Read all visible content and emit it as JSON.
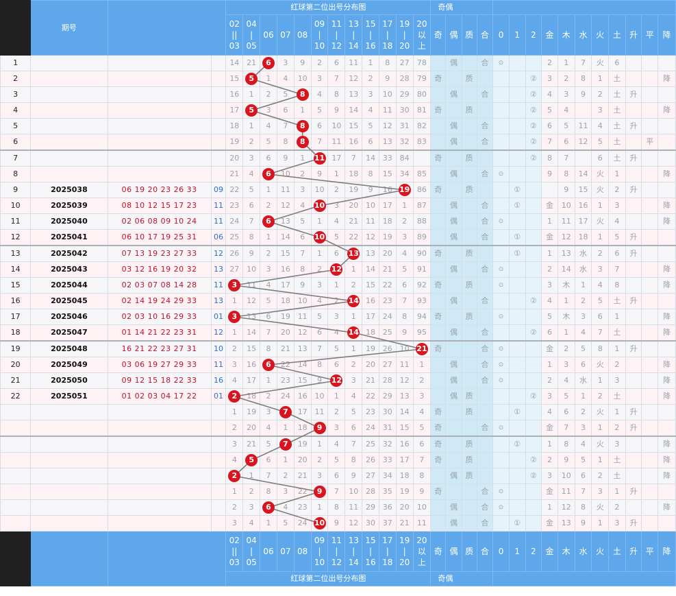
{
  "header": {
    "issue_label": "期号",
    "section_title": "红球第二位出号分布图",
    "parity_title": "奇偶",
    "columns": [
      "02\n||\n03",
      "04\n|\n05",
      "06",
      "07",
      "08",
      "09\n|\n10",
      "11\n|\n12",
      "13\n|\n14",
      "15\n|\n16",
      "17\n|\n18",
      "19\n|\n20",
      "20\n以\n上",
      "奇",
      "偶",
      "质",
      "合",
      "0",
      "1",
      "2",
      "金",
      "木",
      "水",
      "火",
      "土",
      "升",
      "平",
      "降"
    ]
  },
  "rows": [
    {
      "n": "1",
      "p": "",
      "r": "",
      "b": "",
      "v": [
        "14",
        "21",
        "@6",
        "3",
        "9",
        "2",
        "6",
        "11",
        "1",
        "8",
        "27",
        "78",
        "",
        "偶",
        "",
        "合",
        "⊙",
        "",
        "",
        "2",
        "1",
        "7",
        "火",
        "6",
        "",
        "",
        ""
      ]
    },
    {
      "n": "2",
      "p": "",
      "r": "",
      "b": "",
      "v": [
        "15",
        "@5",
        "1",
        "4",
        "10",
        "3",
        "7",
        "12",
        "2",
        "9",
        "28",
        "79",
        "奇",
        "",
        "质",
        "",
        "",
        "",
        "②",
        "3",
        "2",
        "8",
        "1",
        "土",
        "",
        "",
        "降"
      ]
    },
    {
      "n": "3",
      "p": "",
      "r": "",
      "b": "",
      "v": [
        "16",
        "1",
        "2",
        "5",
        "@8",
        "4",
        "8",
        "13",
        "3",
        "10",
        "29",
        "80",
        "",
        "偶",
        "",
        "合",
        "",
        "",
        "②",
        "4",
        "3",
        "9",
        "2",
        "土",
        "升",
        "",
        ""
      ]
    },
    {
      "n": "4",
      "p": "",
      "r": "",
      "b": "",
      "v": [
        "17",
        "@5",
        "3",
        "6",
        "1",
        "5",
        "9",
        "14",
        "4",
        "11",
        "30",
        "81",
        "奇",
        "",
        "质",
        "",
        "",
        "",
        "②",
        "5",
        "4",
        "",
        "3",
        "土",
        "",
        "",
        "降"
      ]
    },
    {
      "n": "5",
      "p": "",
      "r": "",
      "b": "",
      "v": [
        "18",
        "1",
        "4",
        "7",
        "@8",
        "6",
        "10",
        "15",
        "5",
        "12",
        "31",
        "82",
        "",
        "偶",
        "",
        "合",
        "",
        "",
        "②",
        "6",
        "5",
        "11",
        "4",
        "土",
        "升",
        "",
        ""
      ]
    },
    {
      "n": "6",
      "p": "",
      "r": "",
      "b": "",
      "v": [
        "19",
        "2",
        "5",
        "8",
        "@8",
        "7",
        "11",
        "16",
        "6",
        "13",
        "32",
        "83",
        "",
        "偶",
        "",
        "合",
        "",
        "",
        "②",
        "7",
        "6",
        "12",
        "5",
        "土",
        "",
        "平",
        ""
      ]
    },
    {
      "n": "7",
      "p": "",
      "r": "",
      "b": "",
      "v": [
        "20",
        "3",
        "6",
        "9",
        "1",
        "@11",
        "17",
        "7",
        "14",
        "33",
        "84",
        "",
        "奇",
        "",
        "质",
        "",
        "",
        "",
        "②",
        "8",
        "7",
        "",
        "6",
        "土",
        "升",
        "",
        ""
      ]
    },
    {
      "n": "8",
      "p": "",
      "r": "",
      "b": "",
      "v": [
        "21",
        "4",
        "@6",
        "10",
        "2",
        "9",
        "1",
        "18",
        "8",
        "15",
        "34",
        "85",
        "",
        "偶",
        "",
        "合",
        "⊙",
        "",
        "",
        "9",
        "8",
        "14",
        "火",
        "1",
        "",
        "",
        "降"
      ]
    },
    {
      "n": "9",
      "p": "2025038",
      "r": "06 19 20 23 26 33",
      "b": "09",
      "v": [
        "22",
        "5",
        "1",
        "11",
        "3",
        "10",
        "2",
        "19",
        "9",
        "16",
        "@19",
        "86",
        "奇",
        "",
        "质",
        "",
        "",
        "①",
        "",
        "",
        "9",
        "15",
        "火",
        "2",
        "升",
        "",
        ""
      ]
    },
    {
      "n": "10",
      "p": "2025039",
      "r": "08 10 12 15 17 23",
      "b": "11",
      "v": [
        "23",
        "6",
        "2",
        "12",
        "4",
        "@10",
        "3",
        "20",
        "10",
        "17",
        "1",
        "87",
        "",
        "偶",
        "",
        "合",
        "",
        "①",
        "",
        "金",
        "10",
        "16",
        "1",
        "3",
        "",
        "",
        "降"
      ]
    },
    {
      "n": "11",
      "p": "2025040",
      "r": "02 06 08 09 10 24",
      "b": "11",
      "v": [
        "24",
        "7",
        "@6",
        "13",
        "5",
        "1",
        "4",
        "21",
        "11",
        "18",
        "2",
        "88",
        "",
        "偶",
        "",
        "合",
        "⊙",
        "",
        "",
        "1",
        "11",
        "17",
        "火",
        "4",
        "",
        "",
        "降"
      ]
    },
    {
      "n": "12",
      "p": "2025041",
      "r": "06 10 17 19 25 31",
      "b": "06",
      "v": [
        "25",
        "8",
        "1",
        "14",
        "6",
        "@10",
        "5",
        "22",
        "12",
        "19",
        "3",
        "89",
        "",
        "偶",
        "",
        "合",
        "",
        "①",
        "",
        "金",
        "12",
        "18",
        "1",
        "5",
        "升",
        "",
        ""
      ]
    },
    {
      "n": "13",
      "p": "2025042",
      "r": "07 13 19 23 27 33",
      "b": "12",
      "v": [
        "26",
        "9",
        "2",
        "15",
        "7",
        "1",
        "6",
        "@13",
        "13",
        "20",
        "4",
        "90",
        "奇",
        "",
        "质",
        "",
        "",
        "①",
        "",
        "1",
        "13",
        "水",
        "2",
        "6",
        "升",
        "",
        ""
      ]
    },
    {
      "n": "14",
      "p": "2025043",
      "r": "03 12 16 19 20 32",
      "b": "13",
      "v": [
        "27",
        "10",
        "3",
        "16",
        "8",
        "2",
        "@12",
        "1",
        "14",
        "21",
        "5",
        "91",
        "",
        "偶",
        "",
        "合",
        "⊙",
        "",
        "",
        "2",
        "14",
        "水",
        "3",
        "7",
        "",
        "",
        "降"
      ]
    },
    {
      "n": "15",
      "p": "2025044",
      "r": "02 03 07 08 14 28",
      "b": "11",
      "v": [
        "@3",
        "11",
        "4",
        "17",
        "9",
        "3",
        "1",
        "2",
        "15",
        "22",
        "6",
        "92",
        "奇",
        "",
        "质",
        "",
        "⊙",
        "",
        "",
        "3",
        "木",
        "1",
        "4",
        "8",
        "",
        "",
        "降"
      ]
    },
    {
      "n": "16",
      "p": "2025045",
      "r": "02 14 19 24 29 33",
      "b": "13",
      "v": [
        "1",
        "12",
        "5",
        "18",
        "10",
        "4",
        "2",
        "@14",
        "16",
        "23",
        "7",
        "93",
        "",
        "偶",
        "",
        "合",
        "",
        "",
        "②",
        "4",
        "1",
        "2",
        "5",
        "土",
        "升",
        "",
        ""
      ]
    },
    {
      "n": "17",
      "p": "2025046",
      "r": "02 03 10 16 29 33",
      "b": "01",
      "v": [
        "@3",
        "13",
        "6",
        "19",
        "11",
        "5",
        "3",
        "1",
        "17",
        "24",
        "8",
        "94",
        "奇",
        "",
        "质",
        "",
        "⊙",
        "",
        "",
        "5",
        "木",
        "3",
        "6",
        "1",
        "",
        "",
        "降"
      ]
    },
    {
      "n": "18",
      "p": "2025047",
      "r": "01 14 21 22 23 31",
      "b": "12",
      "v": [
        "1",
        "14",
        "7",
        "20",
        "12",
        "6",
        "4",
        "@14",
        "18",
        "25",
        "9",
        "95",
        "",
        "偶",
        "",
        "合",
        "",
        "",
        "②",
        "6",
        "1",
        "4",
        "7",
        "土",
        "",
        "",
        "降"
      ]
    },
    {
      "n": "19",
      "p": "2025048",
      "r": "16 21 22 23 27 31",
      "b": "10",
      "v": [
        "2",
        "15",
        "8",
        "21",
        "13",
        "7",
        "5",
        "1",
        "19",
        "26",
        "10",
        "@21",
        "奇",
        "",
        "",
        "合",
        "⊙",
        "",
        "",
        "金",
        "2",
        "5",
        "8",
        "1",
        "升",
        "",
        ""
      ]
    },
    {
      "n": "20",
      "p": "2025049",
      "r": "03 06 19 27 29 33",
      "b": "11",
      "v": [
        "3",
        "16",
        "@6",
        "22",
        "14",
        "8",
        "6",
        "2",
        "20",
        "27",
        "11",
        "1",
        "",
        "偶",
        "",
        "合",
        "⊙",
        "",
        "",
        "1",
        "3",
        "6",
        "火",
        "2",
        "",
        "",
        "降"
      ]
    },
    {
      "n": "21",
      "p": "2025050",
      "r": "09 12 15 18 22 33",
      "b": "16",
      "v": [
        "4",
        "17",
        "1",
        "23",
        "15",
        "9",
        "@12",
        "3",
        "21",
        "28",
        "12",
        "2",
        "",
        "偶",
        "",
        "合",
        "⊙",
        "",
        "",
        "2",
        "4",
        "水",
        "1",
        "3",
        "",
        "",
        "降"
      ]
    },
    {
      "n": "22",
      "p": "2025051",
      "r": "01 02 03 04 17 22",
      "b": "01",
      "v": [
        "@2",
        "18",
        "2",
        "24",
        "16",
        "10",
        "1",
        "4",
        "22",
        "29",
        "13",
        "3",
        "",
        "偶",
        "质",
        "",
        "",
        "",
        "②",
        "3",
        "5",
        "1",
        "2",
        "土",
        "",
        "",
        "降"
      ]
    },
    {
      "n": "",
      "p": "",
      "r": "",
      "b": "",
      "v": [
        "1",
        "19",
        "3",
        "@7",
        "17",
        "11",
        "2",
        "5",
        "23",
        "30",
        "14",
        "4",
        "奇",
        "",
        "质",
        "",
        "",
        "①",
        "",
        "4",
        "6",
        "2",
        "火",
        "1",
        "升",
        "",
        ""
      ]
    },
    {
      "n": "",
      "p": "",
      "r": "",
      "b": "",
      "v": [
        "2",
        "20",
        "4",
        "1",
        "18",
        "@9",
        "3",
        "6",
        "24",
        "31",
        "15",
        "5",
        "奇",
        "",
        "",
        "合",
        "⊙",
        "",
        "",
        "金",
        "7",
        "3",
        "1",
        "2",
        "升",
        "",
        ""
      ]
    },
    {
      "n": "",
      "p": "",
      "r": "",
      "b": "",
      "v": [
        "3",
        "21",
        "5",
        "@7",
        "19",
        "1",
        "4",
        "7",
        "25",
        "32",
        "16",
        "6",
        "奇",
        "",
        "质",
        "",
        "",
        "①",
        "",
        "1",
        "8",
        "4",
        "火",
        "3",
        "",
        "",
        "降"
      ]
    },
    {
      "n": "",
      "p": "",
      "r": "",
      "b": "",
      "v": [
        "4",
        "@5",
        "6",
        "1",
        "20",
        "2",
        "5",
        "8",
        "26",
        "33",
        "17",
        "7",
        "奇",
        "",
        "质",
        "",
        "",
        "",
        "②",
        "2",
        "9",
        "5",
        "1",
        "土",
        "",
        "",
        "降"
      ]
    },
    {
      "n": "",
      "p": "",
      "r": "",
      "b": "",
      "v": [
        "@2",
        "1",
        "7",
        "2",
        "21",
        "3",
        "6",
        "9",
        "27",
        "34",
        "18",
        "8",
        "",
        "偶",
        "质",
        "",
        "",
        "",
        "②",
        "3",
        "10",
        "6",
        "2",
        "土",
        "",
        "",
        "降"
      ]
    },
    {
      "n": "",
      "p": "",
      "r": "",
      "b": "",
      "v": [
        "1",
        "2",
        "8",
        "3",
        "22",
        "@9",
        "7",
        "10",
        "28",
        "35",
        "19",
        "9",
        "奇",
        "",
        "",
        "合",
        "⊙",
        "",
        "",
        "金",
        "11",
        "7",
        "3",
        "1",
        "升",
        "",
        ""
      ]
    },
    {
      "n": "",
      "p": "",
      "r": "",
      "b": "",
      "v": [
        "2",
        "3",
        "@6",
        "4",
        "23",
        "1",
        "8",
        "11",
        "29",
        "36",
        "20",
        "10",
        "",
        "偶",
        "",
        "合",
        "⊙",
        "",
        "",
        "1",
        "12",
        "8",
        "火",
        "2",
        "",
        "",
        "降"
      ]
    },
    {
      "n": "",
      "p": "",
      "r": "",
      "b": "",
      "v": [
        "3",
        "4",
        "1",
        "5",
        "24",
        "@10",
        "9",
        "12",
        "30",
        "37",
        "21",
        "11",
        "",
        "偶",
        "",
        "合",
        "",
        "①",
        "",
        "金",
        "13",
        "9",
        "1",
        "3",
        "升",
        "",
        ""
      ]
    }
  ]
}
